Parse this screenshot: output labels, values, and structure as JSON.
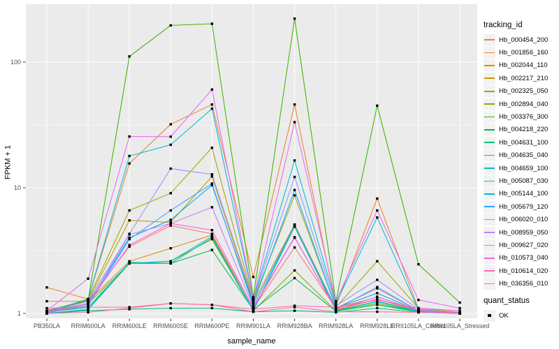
{
  "chart_data": {
    "type": "line",
    "title": "",
    "xlabel": "sample_name",
    "ylabel": "FPKM + 1",
    "y_scale": "log10",
    "ylim": [
      1,
      261
    ],
    "y_ticks": [
      1,
      10,
      100
    ],
    "y_minor": [
      3.1623,
      31.623
    ],
    "grid": true,
    "legend_position": "right",
    "categories": [
      "PB350LA",
      "RRIM600LA",
      "RRIM600LE",
      "RRIM600SE",
      "RRIM600PE",
      "RRIM901LA",
      "RRIM928BA",
      "RRIM928LA",
      "RRIM928LE",
      "RRII105LA_Control",
      "RRII105LA_Stressed"
    ],
    "series": [
      {
        "name": "Hb_000454_200",
        "color": "#F8766D",
        "values": [
          1.25,
          1.25,
          3.4,
          5.0,
          4.3,
          1.1,
          3.35,
          1.1,
          1.58,
          1.05,
          1.0
        ]
      },
      {
        "name": "Hb_001856_160",
        "color": "#EA8331",
        "values": [
          1.61,
          1.3,
          15.6,
          32,
          46,
          1.95,
          46,
          1.15,
          8.2,
          1.08,
          1.0
        ]
      },
      {
        "name": "Hb_002044_110",
        "color": "#D89000",
        "values": [
          1.05,
          1.25,
          2.6,
          3.3,
          4.2,
          1.05,
          4.9,
          1.06,
          1.3,
          1.04,
          1.0
        ]
      },
      {
        "name": "Hb_002217_210",
        "color": "#C09B00",
        "values": [
          1.02,
          1.27,
          5.5,
          5.3,
          12.3,
          1.22,
          5.1,
          1.1,
          1.35,
          1.06,
          1.0
        ]
      },
      {
        "name": "Hb_002325_050",
        "color": "#A3A500",
        "values": [
          1.03,
          1.3,
          6.6,
          9.05,
          20.8,
          1.27,
          8.7,
          1.12,
          2.6,
          1.1,
          1.02
        ]
      },
      {
        "name": "Hb_002894_040",
        "color": "#7CAE00",
        "values": [
          1.0,
          1.2,
          2.5,
          2.6,
          3.9,
          1.05,
          2.2,
          1.05,
          1.2,
          1.03,
          1.0
        ]
      },
      {
        "name": "Hb_003376_300",
        "color": "#39B600",
        "values": [
          1.05,
          1.28,
          111,
          196,
          202,
          1.35,
          222,
          1.25,
          45,
          2.46,
          1.22
        ]
      },
      {
        "name": "Hb_004218_220",
        "color": "#00BB4E",
        "values": [
          1.02,
          1.12,
          2.5,
          2.5,
          3.2,
          1.07,
          1.91,
          1.04,
          1.17,
          1.03,
          1.0
        ]
      },
      {
        "name": "Hb_004631_100",
        "color": "#00BF7D",
        "values": [
          1.0,
          1.05,
          1.08,
          1.1,
          1.1,
          1.03,
          1.05,
          1.02,
          1.1,
          1.02,
          1.0
        ]
      },
      {
        "name": "Hb_004635_040",
        "color": "#00C1A3",
        "values": [
          1.0,
          1.08,
          2.55,
          2.5,
          4.0,
          1.05,
          4.9,
          1.05,
          1.25,
          1.04,
          1.0
        ]
      },
      {
        "name": "Hb_004659_100",
        "color": "#00BFC4",
        "values": [
          1.0,
          1.07,
          2.5,
          2.6,
          4.1,
          1.06,
          5.0,
          1.05,
          1.24,
          1.03,
          1.0
        ]
      },
      {
        "name": "Hb_005087_030",
        "color": "#00BAE0",
        "values": [
          1.03,
          1.3,
          17.9,
          22,
          42.6,
          1.3,
          16.5,
          1.2,
          5.8,
          1.07,
          1.0
        ]
      },
      {
        "name": "Hb_005144_100",
        "color": "#00B0F6",
        "values": [
          1.02,
          1.2,
          4.0,
          5.55,
          10.5,
          1.2,
          9.6,
          1.1,
          1.45,
          1.05,
          1.0
        ]
      },
      {
        "name": "Hb_005679_120",
        "color": "#35A2FF",
        "values": [
          1.01,
          1.15,
          3.9,
          6.6,
          10.8,
          1.15,
          5.0,
          1.08,
          1.62,
          1.05,
          1.0
        ]
      },
      {
        "name": "Hb_006020_010",
        "color": "#9590FF",
        "values": [
          1.02,
          1.25,
          4.3,
          14.2,
          12.8,
          1.28,
          12.2,
          1.15,
          1.85,
          1.08,
          1.01
        ]
      },
      {
        "name": "Hb_008959_050",
        "color": "#C77CFF",
        "values": [
          1.0,
          1.18,
          4.25,
          5.2,
          7.0,
          1.12,
          4.05,
          1.07,
          1.36,
          1.05,
          1.0
        ]
      },
      {
        "name": "Hb_009627_020",
        "color": "#E76BF3",
        "values": [
          1.05,
          1.89,
          25.6,
          25.5,
          60.5,
          1.3,
          33.3,
          1.25,
          6.6,
          1.28,
          1.1
        ]
      },
      {
        "name": "Hb_010573_040",
        "color": "#FA62DB",
        "values": [
          1.03,
          1.2,
          3.5,
          5.2,
          4.6,
          1.1,
          4.0,
          1.08,
          1.3,
          1.06,
          1.0
        ]
      },
      {
        "name": "Hb_010614_020",
        "color": "#FF62BC",
        "values": [
          1.1,
          1.12,
          1.12,
          1.2,
          1.17,
          1.08,
          1.15,
          1.12,
          1.28,
          1.1,
          1.05
        ]
      },
      {
        "name": "Hb_036356_010",
        "color": "#FF6A98",
        "values": [
          1.0,
          1.02,
          1.1,
          1.2,
          1.17,
          1.03,
          1.12,
          1.03,
          1.03,
          1.02,
          1.0
        ]
      }
    ],
    "legend": {
      "tracking_title": "tracking_id",
      "quant_title": "quant_status",
      "quant_label": "OK"
    },
    "style": {
      "panel_bg": "#EBEBEB",
      "grid_color": "#FFFFFF",
      "point_color": "#000000",
      "tick_color": "#333333",
      "tick_label_color": "#4D4D4D"
    }
  }
}
